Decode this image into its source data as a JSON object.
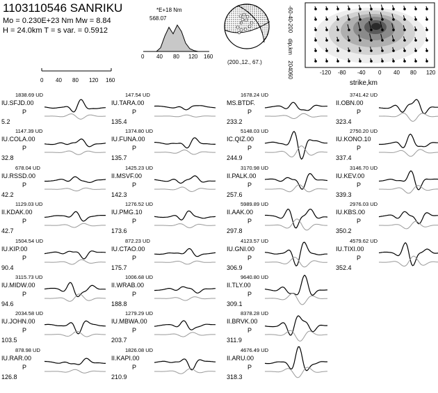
{
  "header": {
    "title": "1103110546 SANRIKU",
    "line1": "Mo =  0.230E+23 Nm   Mw =  8.84",
    "line2": "H =  24.0km   T =     s   var. =  0.5912"
  },
  "moment_rate": {
    "unit": "*E+18 Nm",
    "peak": "568.07",
    "ticks": [
      "0",
      "40",
      "80",
      "120",
      "160"
    ],
    "values": [
      0,
      80,
      330,
      520,
      380,
      568,
      430,
      180,
      60,
      20,
      0
    ]
  },
  "mechanism": {
    "label": "(200.,12., 67.)"
  },
  "slip_map": {
    "ylabel": "dip,km",
    "xlabel": "strike,km",
    "yticks": [
      "-60",
      "-40",
      "-20",
      "0",
      "20",
      "40",
      "60"
    ],
    "xticks": [
      "-120",
      "-80",
      "-40",
      "0",
      "40",
      "80",
      "120"
    ]
  },
  "time_scale": {
    "ticks": [
      "0",
      "40",
      "80",
      "120",
      "160"
    ]
  },
  "columns": [
    [
      {
        "amp": "1838.69 UD",
        "name": "IU.SFJD.00",
        "phase": "P",
        "az": "5.2"
      },
      {
        "amp": "1147.39 UD",
        "name": "IU.COLA.00",
        "phase": "P",
        "az": "32.8"
      },
      {
        "amp": "678.04 UD",
        "name": "IU.RSSD.00",
        "phase": "P",
        "az": "42.2"
      },
      {
        "amp": "1129.03 UD",
        "name": "II.KDAK.00",
        "phase": "P",
        "az": "42.7"
      },
      {
        "amp": "1504.54 UD",
        "name": "IU.KIP.00",
        "phase": "P",
        "az": "90.4"
      },
      {
        "amp": "3115.73 UD",
        "name": "IU.MIDW.00",
        "phase": "P",
        "az": "94.6"
      },
      {
        "amp": "2034.58 UD",
        "name": "IU.JOHN.00",
        "phase": "P",
        "az": "103.5"
      },
      {
        "amp": "878.98 UD",
        "name": "IU.RAR.00",
        "phase": "P",
        "az": "126.8"
      }
    ],
    [
      {
        "amp": "147.54 UD",
        "name": "IU.TARA.00",
        "phase": "P",
        "az": "135.4"
      },
      {
        "amp": "1374.80 UD",
        "name": "IU.FUNA.00",
        "phase": "P",
        "az": "135.7"
      },
      {
        "amp": "1425.23 UD",
        "name": "II.MSVF.00",
        "phase": "P",
        "az": "142.3"
      },
      {
        "amp": "1276.52 UD",
        "name": "IU.PMG.10",
        "phase": "P",
        "az": "173.6"
      },
      {
        "amp": "872.23 UD",
        "name": "IU.CTAO.00",
        "phase": "P",
        "az": "175.7"
      },
      {
        "amp": "1006.68 UD",
        "name": "II.WRAB.00",
        "phase": "P",
        "az": "188.8"
      },
      {
        "amp": "1279.29 UD",
        "name": "IU.MBWA.00",
        "phase": "P",
        "az": "203.7"
      },
      {
        "amp": "1826.08 UD",
        "name": "II.KAPI.00",
        "phase": "P",
        "az": "210.9"
      }
    ],
    [
      {
        "amp": "1678.24 UD",
        "name": "MS.BTDF.",
        "phase": "P",
        "az": "233.2"
      },
      {
        "amp": "5148.03 UD",
        "name": "IC.QIZ.00",
        "phase": "P",
        "az": "244.9"
      },
      {
        "amp": "3170.98 UD",
        "name": "II.PALK.00",
        "phase": "P",
        "az": "257.6"
      },
      {
        "amp": "5989.89 UD",
        "name": "II.AAK.00",
        "phase": "P",
        "az": "297.8"
      },
      {
        "amp": "4123.57 UD",
        "name": "IU.GNI.00",
        "phase": "P",
        "az": "306.9"
      },
      {
        "amp": "9640.80 UD",
        "name": "II.TLY.00",
        "phase": "P",
        "az": "309.1"
      },
      {
        "amp": "8378.28 UD",
        "name": "II.BRVK.00",
        "phase": "P",
        "az": "311.9"
      },
      {
        "amp": "4676.49 UD",
        "name": "II.ARU.00",
        "phase": "P",
        "az": "318.3"
      }
    ],
    [
      {
        "amp": "3741.42 UD",
        "name": "II.OBN.00",
        "phase": "P",
        "az": "323.4"
      },
      {
        "amp": "2750.20 UD",
        "name": "IU.KONO.10",
        "phase": "P",
        "az": "337.4"
      },
      {
        "amp": "3146.70 UD",
        "name": "IU.KEV.00",
        "phase": "P",
        "az": "339.3"
      },
      {
        "amp": "2976.03 UD",
        "name": "IU.KBS.00",
        "phase": "P",
        "az": "350.2"
      },
      {
        "amp": "4579.62 UD",
        "name": "IU.TIXI.00",
        "phase": "P",
        "az": "352.4"
      }
    ]
  ]
}
